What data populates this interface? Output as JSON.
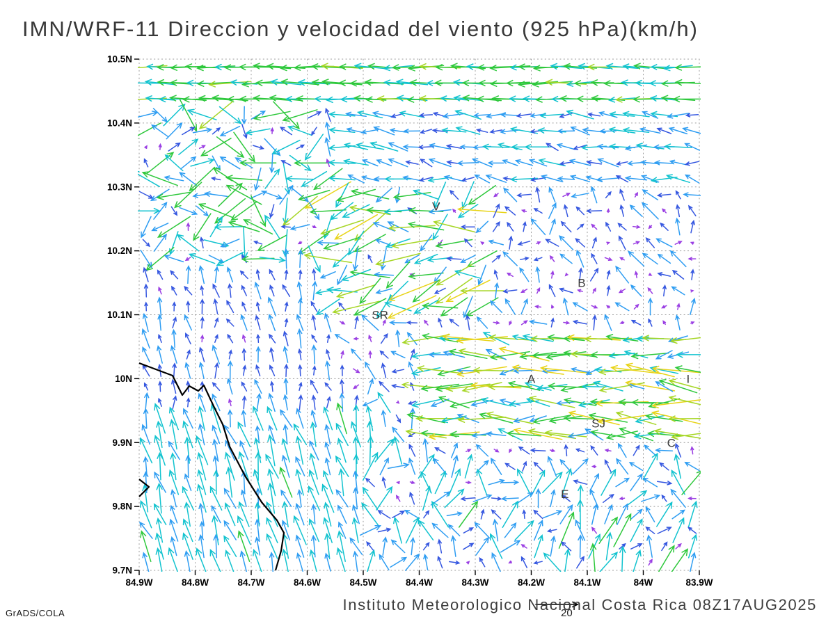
{
  "title": "IMN/WRF-11 Direccion y velocidad del viento (925 hPa)(km/h)",
  "footer": {
    "institute": "Instituto Meteorologico Nacional Costa Rica 08Z17AUG2025",
    "credit": "GrADS/COLA",
    "reference_value": "20"
  },
  "chart_data": {
    "type": "vector-field-map",
    "title": "IMN/WRF-11 Direccion y velocidad del viento (925 hPa)(km/h)",
    "level": "925 hPa",
    "units": "km/h",
    "valid_time": "08Z17AUG2025",
    "reference_speed": 20,
    "lon_range_w": [
      84.9,
      83.9
    ],
    "lat_range": [
      9.7,
      10.5
    ],
    "x_ticks": [
      "84.9W",
      "84.8W",
      "84.7W",
      "84.6W",
      "84.5W",
      "84.4W",
      "84.3W",
      "84.2W",
      "84.1W",
      "84W",
      "83.9W"
    ],
    "y_ticks": [
      "10.5N",
      "10.4N",
      "10.3N",
      "10.2N",
      "10.1N",
      "10N",
      "9.9N",
      "9.8N",
      "9.7N"
    ],
    "grid_step_deg": 0.1,
    "grid_on": true,
    "stations": [
      {
        "label": "V",
        "lon": 84.37,
        "lat": 10.27
      },
      {
        "label": "B",
        "lon": 84.11,
        "lat": 10.15
      },
      {
        "label": "SR",
        "lon": 84.47,
        "lat": 10.1
      },
      {
        "label": "A",
        "lon": 84.2,
        "lat": 10.0
      },
      {
        "label": "SJ",
        "lon": 84.08,
        "lat": 9.93
      },
      {
        "label": "C",
        "lon": 83.95,
        "lat": 9.9
      },
      {
        "label": "E",
        "lon": 84.14,
        "lat": 9.82
      },
      {
        "label": "I",
        "lon": 83.92,
        "lat": 10.0
      }
    ],
    "speed_scale": {
      "thresholds": [
        3.5,
        7,
        11,
        15,
        19,
        23,
        27,
        31
      ],
      "colors": [
        "#9a3ee3",
        "#3456e0",
        "#2e9df2",
        "#12c3cf",
        "#2ec83c",
        "#a6d625",
        "#e8d418",
        "#f0941c",
        "#e8301f"
      ]
    },
    "vector_grid": {
      "cols": 40,
      "rows": 32,
      "seed": 7
    },
    "flow_regions": [
      {
        "name": "north-jet",
        "lat": [
          10.42,
          10.52
        ],
        "lon": [
          83.88,
          84.92
        ],
        "u": -16,
        "v": 0,
        "ju": 4,
        "jv": 1.5
      },
      {
        "name": "ne-band",
        "lat": [
          10.3,
          10.42
        ],
        "lon": [
          83.88,
          84.55
        ],
        "u": -9,
        "v": 1,
        "ju": 4,
        "jv": 3
      },
      {
        "name": "nw-mix",
        "lat": [
          10.17,
          10.42
        ],
        "lon": [
          84.58,
          84.9
        ],
        "u": -3,
        "v": -2,
        "ju": 16,
        "jv": 13
      },
      {
        "name": "v-jet",
        "lat": [
          10.1,
          10.33
        ],
        "lon": [
          84.27,
          84.58
        ],
        "u": -12,
        "v": -4,
        "ju": 11,
        "jv": 9
      },
      {
        "name": "valley-jet",
        "lat": [
          9.9,
          10.07
        ],
        "lon": [
          83.88,
          84.4
        ],
        "u": -16,
        "v": 1,
        "ju": 9,
        "jv": 5
      },
      {
        "name": "west-col",
        "lat": [
          9.95,
          10.45
        ],
        "lon": [
          84.55,
          84.92
        ],
        "u": -1,
        "v": 6,
        "ju": 2.5,
        "jv": 3
      },
      {
        "name": "ocean",
        "lat": [
          9.68,
          9.95
        ],
        "lon": [
          84.5,
          84.92
        ],
        "u": -3,
        "v": 11,
        "ju": 3,
        "jv": 3.5
      },
      {
        "name": "mid-green",
        "lat": [
          9.84,
          9.98
        ],
        "lon": [
          84.38,
          84.56
        ],
        "u": 2,
        "v": 5,
        "ju": 9,
        "jv": 9
      },
      {
        "name": "se-strong",
        "lat": [
          9.7,
          9.8
        ],
        "lon": [
          83.88,
          84.15
        ],
        "u": 3,
        "v": 10,
        "ju": 8,
        "jv": 8
      },
      {
        "name": "south-mix",
        "lat": [
          9.68,
          9.88
        ],
        "lon": [
          83.88,
          84.5
        ],
        "u": 1,
        "v": 6,
        "ju": 9,
        "jv": 7
      },
      {
        "name": "interior",
        "lat": [
          9.0,
          11.0
        ],
        "lon": [
          83.0,
          85.5
        ],
        "u": -2,
        "v": 3,
        "ju": 6,
        "jv": 5
      }
    ],
    "coastline": [
      [
        [
          84.9,
          10.024
        ],
        [
          84.84,
          10.005
        ],
        [
          84.823,
          9.974
        ],
        [
          84.81,
          9.988
        ],
        [
          84.795,
          9.981
        ],
        [
          84.785,
          9.989
        ],
        [
          84.766,
          9.955
        ],
        [
          84.751,
          9.929
        ],
        [
          84.738,
          9.894
        ],
        [
          84.711,
          9.848
        ],
        [
          84.681,
          9.807
        ],
        [
          84.654,
          9.778
        ],
        [
          84.642,
          9.759
        ],
        [
          84.647,
          9.73
        ],
        [
          84.657,
          9.7
        ]
      ],
      [
        [
          84.9,
          9.843
        ],
        [
          84.882,
          9.831
        ],
        [
          84.9,
          9.815
        ]
      ]
    ]
  }
}
